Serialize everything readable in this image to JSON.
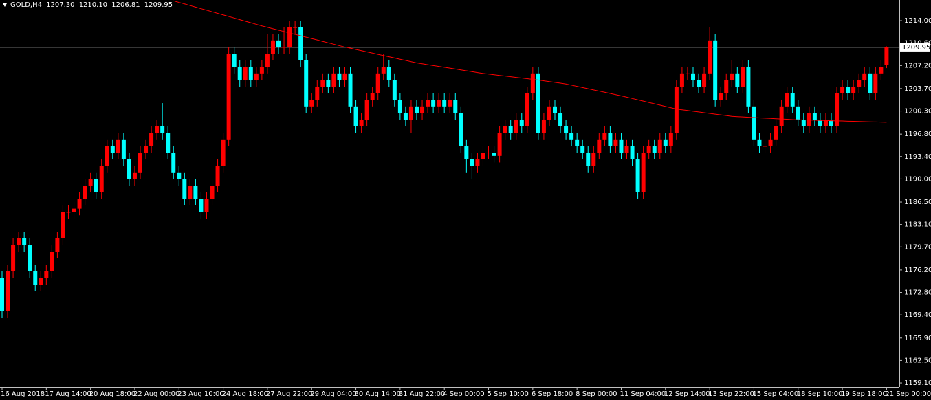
{
  "chart_data": {
    "type": "candlestick",
    "title": "GOLD,H4",
    "title_values": [
      "1207.30",
      "1210.10",
      "1206.81",
      "1209.95"
    ],
    "categories": [
      "16 Aug 2018",
      null,
      null,
      null,
      null,
      null,
      null,
      null,
      "17 Aug 14:00",
      null,
      null,
      null,
      null,
      null,
      null,
      null,
      "20 Aug 18:00",
      null,
      null,
      null,
      null,
      null,
      null,
      null,
      "22 Aug 00:00",
      null,
      null,
      null,
      null,
      null,
      null,
      null,
      "23 Aug 10:00",
      null,
      null,
      null,
      null,
      null,
      null,
      null,
      "24 Aug 18:00",
      null,
      null,
      null,
      null,
      null,
      null,
      null,
      "27 Aug 22:00",
      null,
      null,
      null,
      null,
      null,
      null,
      null,
      "29 Aug 04:00",
      null,
      null,
      null,
      null,
      null,
      null,
      null,
      "30 Aug 14:00",
      null,
      null,
      null,
      null,
      null,
      null,
      null,
      "31 Aug 22:00",
      null,
      null,
      null,
      null,
      null,
      null,
      null,
      "4 Sep 00:00",
      null,
      null,
      null,
      null,
      null,
      null,
      null,
      "5 Sep 10:00",
      null,
      null,
      null,
      null,
      null,
      null,
      null,
      "6 Sep 18:00",
      null,
      null,
      null,
      null,
      null,
      null,
      null,
      "8 Sep 00:00",
      null,
      null,
      null,
      null,
      null,
      null,
      null,
      "11 Sep 04:00",
      null,
      null,
      null,
      null,
      null,
      null,
      null,
      "12 Sep 14:00",
      null,
      null,
      null,
      null,
      null,
      null,
      null,
      "13 Sep 22:00",
      null,
      null,
      null,
      null,
      null,
      null,
      null,
      "15 Sep 04:00",
      null,
      null,
      null,
      null,
      null,
      null,
      null,
      "18 Sep 10:00",
      null,
      null,
      null,
      null,
      null,
      null,
      null,
      "19 Sep 18:00",
      null,
      null,
      null,
      null,
      null,
      null,
      null,
      "21 Sep 00:00"
    ],
    "open": [
      1175,
      1170,
      1176,
      1180,
      1181,
      1180,
      1176,
      1174,
      1175,
      1176,
      1179,
      1181,
      1185,
      1185,
      1185.5,
      1187,
      1189,
      1190,
      1188,
      1192,
      1195,
      1194,
      1196,
      1193,
      1190,
      1191,
      1194,
      1195,
      1197,
      1198,
      1197,
      1194,
      1191,
      1190,
      1187,
      1189,
      1187,
      1185,
      1187,
      1189,
      1192,
      1196,
      1209,
      1207,
      1205,
      1207,
      1205,
      1206,
      1207,
      1209,
      1211,
      1210,
      1210,
      1213,
      1213,
      1208,
      1201,
      1202,
      1204,
      1205,
      1204,
      1206,
      1205,
      1206,
      1201,
      1198,
      1199,
      1202,
      1203,
      1206,
      1207,
      1205,
      1202,
      1200,
      1199,
      1201,
      1200,
      1201,
      1202,
      1201,
      1202,
      1201,
      1202,
      1200,
      1195,
      1193,
      1192,
      1193,
      1194,
      1194,
      1193.5,
      1197,
      1198,
      1197,
      1199,
      1198,
      1203,
      1206,
      1197,
      1199,
      1201,
      1200,
      1198,
      1197,
      1196,
      1195,
      1194,
      1192,
      1194,
      1196,
      1197,
      1195,
      1196,
      1194,
      1195,
      1193,
      1188,
      1194,
      1195,
      1194,
      1196,
      1195,
      1197,
      1204,
      1206,
      1206,
      1205,
      1204,
      1206,
      1211,
      1202,
      1203,
      1205,
      1206,
      1204,
      1207,
      1201,
      1196,
      1195,
      1195,
      1196,
      1198,
      1201,
      1203,
      1201,
      1199,
      1198,
      1200,
      1199,
      1198,
      1199,
      1198,
      1203,
      1204,
      1203,
      1204,
      1205,
      1206,
      1203,
      1206,
      1207.3
    ],
    "high": [
      1176,
      1177,
      1181,
      1182,
      1182,
      1181,
      1177,
      1176,
      1177,
      1180,
      1182,
      1186,
      1186,
      1186.5,
      1188,
      1190,
      1191,
      1191,
      1193,
      1196,
      1196,
      1197,
      1197,
      1194,
      1192,
      1195,
      1196,
      1198,
      1199,
      1201.5,
      1198,
      1195,
      1192,
      1191,
      1190,
      1190,
      1188,
      1188,
      1190,
      1193,
      1197,
      1210,
      1210,
      1208,
      1208,
      1208,
      1207,
      1208,
      1212,
      1212,
      1212,
      1213,
      1214,
      1214,
      1214,
      1209,
      1203,
      1205,
      1206,
      1206,
      1207,
      1207,
      1207,
      1207,
      1202,
      1200,
      1203,
      1204,
      1207,
      1209,
      1208,
      1206,
      1203,
      1201,
      1202,
      1202,
      1202,
      1203,
      1203,
      1203,
      1203,
      1203,
      1203,
      1201,
      1196,
      1194,
      1194,
      1195,
      1195,
      1195,
      1198,
      1199,
      1199,
      1200,
      1200,
      1204,
      1207,
      1207,
      1200,
      1202,
      1202,
      1201,
      1199,
      1198,
      1197,
      1196,
      1195,
      1195,
      1197,
      1198,
      1198,
      1197,
      1197,
      1196,
      1196,
      1194,
      1195,
      1196,
      1196,
      1197,
      1197,
      1198,
      1205,
      1207,
      1207,
      1207,
      1206,
      1207,
      1213,
      1212,
      1204,
      1206,
      1208,
      1207,
      1208,
      1208,
      1202,
      1197,
      1196,
      1197,
      1199,
      1202,
      1204,
      1204,
      1202,
      1200,
      1201,
      1201,
      1200,
      1200,
      1200,
      1204,
      1205,
      1205,
      1205,
      1206,
      1207,
      1207,
      1207,
      1208,
      1210.1
    ],
    "low": [
      1169,
      1169,
      1175,
      1179,
      1179,
      1175,
      1173,
      1173,
      1174,
      1175,
      1178,
      1180,
      1184,
      1184,
      1184.5,
      1186,
      1188,
      1187,
      1187,
      1191,
      1193,
      1193,
      1192,
      1189,
      1189,
      1190,
      1193,
      1194,
      1196,
      1196,
      1193,
      1190,
      1189,
      1186,
      1186,
      1186,
      1184,
      1184,
      1186,
      1188,
      1191,
      1195,
      1206,
      1204,
      1204,
      1204,
      1204,
      1205,
      1206,
      1208,
      1209,
      1209,
      1209,
      1212,
      1207,
      1200,
      1200,
      1201,
      1203,
      1203,
      1203,
      1204,
      1204,
      1200,
      1197,
      1197,
      1198,
      1201,
      1202,
      1205,
      1204,
      1201,
      1199,
      1198,
      1197,
      1199,
      1199,
      1200,
      1200,
      1200,
      1200,
      1200,
      1199,
      1194,
      1191,
      1190,
      1191,
      1192,
      1193,
      1192.5,
      1192.5,
      1196,
      1196,
      1196,
      1197,
      1197,
      1202,
      1196,
      1196,
      1198,
      1199,
      1197,
      1196,
      1195,
      1194,
      1193,
      1191,
      1191,
      1193,
      1195,
      1194,
      1194,
      1193,
      1193,
      1192,
      1187,
      1187,
      1193,
      1193,
      1193,
      1194,
      1194,
      1196,
      1203,
      1205,
      1204,
      1203,
      1203,
      1205,
      1201,
      1201,
      1202,
      1204,
      1203,
      1203,
      1200,
      1195,
      1194,
      1194,
      1194,
      1195,
      1197,
      1200,
      1200,
      1198,
      1197,
      1197,
      1198,
      1197,
      1197,
      1197,
      1197,
      1202,
      1202,
      1202,
      1203,
      1204,
      1202,
      1202,
      1205,
      1206.81
    ],
    "close": [
      1170,
      1176,
      1180,
      1181,
      1180,
      1176,
      1174,
      1175,
      1176,
      1179,
      1181,
      1185,
      1185,
      1185.5,
      1187,
      1189,
      1190,
      1188,
      1192,
      1195,
      1194,
      1196,
      1193,
      1190,
      1191,
      1194,
      1195,
      1197,
      1198,
      1197,
      1194,
      1191,
      1190,
      1187,
      1189,
      1187,
      1185,
      1187,
      1189,
      1192,
      1196,
      1209,
      1207,
      1205,
      1207,
      1205,
      1206,
      1207,
      1209,
      1211,
      1210,
      1210,
      1213,
      1213,
      1208,
      1201,
      1202,
      1204,
      1205,
      1204,
      1206,
      1205,
      1206,
      1201,
      1198,
      1199,
      1202,
      1203,
      1206,
      1207,
      1205,
      1202,
      1200,
      1199,
      1201,
      1200,
      1201,
      1202,
      1201,
      1202,
      1201,
      1202,
      1200,
      1195,
      1193,
      1192,
      1193,
      1194,
      1194,
      1193.5,
      1197,
      1198,
      1197,
      1199,
      1198,
      1203,
      1206,
      1197,
      1199,
      1201,
      1200,
      1198,
      1197,
      1196,
      1195,
      1194,
      1192,
      1194,
      1196,
      1197,
      1195,
      1196,
      1194,
      1195,
      1193,
      1188,
      1194,
      1195,
      1194,
      1196,
      1195,
      1197,
      1204,
      1206,
      1206,
      1205,
      1204,
      1206,
      1211,
      1202,
      1203,
      1205,
      1206,
      1204,
      1207,
      1201,
      1196,
      1195,
      1195,
      1196,
      1198,
      1201,
      1203,
      1201,
      1199,
      1198,
      1200,
      1199,
      1198,
      1199,
      1198,
      1203,
      1204,
      1203,
      1204,
      1205,
      1206,
      1203,
      1206,
      1207,
      1209.95
    ],
    "up_color": "#ff0000",
    "down_color": "#00ffff",
    "ma": {
      "color": "#ff0000",
      "values": [
        null,
        null,
        null,
        null,
        null,
        null,
        null,
        null,
        null,
        null,
        null,
        null,
        null,
        null,
        null,
        null,
        null,
        null,
        null,
        null,
        null,
        null,
        null,
        null,
        null,
        null,
        null,
        null,
        null,
        null,
        null,
        1217.0,
        1216.76,
        1216.53,
        1216.29,
        1216.05,
        1215.81,
        1215.58,
        1215.34,
        1215.1,
        1214.86,
        1214.63,
        1214.39,
        1214.15,
        1213.91,
        1213.68,
        1213.44,
        1213.2,
        1212.99,
        1212.77,
        1212.56,
        1212.35,
        1212.13,
        1211.92,
        1211.71,
        1211.49,
        1211.28,
        1211.07,
        1210.85,
        1210.64,
        1210.43,
        1210.21,
        1210.0,
        1209.82,
        1209.63,
        1209.45,
        1209.26,
        1209.08,
        1208.89,
        1208.71,
        1208.52,
        1208.34,
        1208.15,
        1207.97,
        1207.78,
        1207.6,
        1207.47,
        1207.33,
        1207.2,
        1207.07,
        1206.93,
        1206.8,
        1206.67,
        1206.53,
        1206.4,
        1206.27,
        1206.13,
        1206.0,
        1205.9,
        1205.8,
        1205.7,
        1205.6,
        1205.5,
        1205.4,
        1205.3,
        1205.2,
        1205.1,
        1205.0,
        1204.88,
        1204.76,
        1204.64,
        1204.52,
        1204.4,
        1204.22,
        1204.04,
        1203.86,
        1203.68,
        1203.5,
        1203.32,
        1203.14,
        1202.96,
        1202.78,
        1202.6,
        1202.4,
        1202.2,
        1202.0,
        1201.8,
        1201.6,
        1201.4,
        1201.2,
        1201.0,
        1200.8,
        1200.6,
        1200.49,
        1200.38,
        1200.27,
        1200.16,
        1200.05,
        1199.94,
        1199.83,
        1199.72,
        1199.61,
        1199.5,
        1199.45,
        1199.41,
        1199.36,
        1199.32,
        1199.27,
        1199.23,
        1199.18,
        1199.14,
        1199.09,
        1199.05,
        1199.0,
        1198.98,
        1198.95,
        1198.93,
        1198.91,
        1198.88,
        1198.86,
        1198.84,
        1198.81,
        1198.79,
        1198.76,
        1198.74,
        1198.72,
        1198.69,
        1198.67,
        1198.65,
        1198.62,
        1198.6
      ]
    },
    "last_price": {
      "value": 1209.95,
      "label": "1209.95"
    },
    "ylim": [
      1158.48,
      1217.13
    ],
    "yticks": [
      {
        "value": 1214,
        "label": "1214.00"
      },
      {
        "value": 1210.6,
        "label": "1210.60"
      },
      {
        "value": 1207.2,
        "label": "1207.20"
      },
      {
        "value": 1203.7,
        "label": "1203.70"
      },
      {
        "value": 1200.3,
        "label": "1200.30"
      },
      {
        "value": 1196.8,
        "label": "1196.80"
      },
      {
        "value": 1193.4,
        "label": "1193.40"
      },
      {
        "value": 1190,
        "label": "1190.00"
      },
      {
        "value": 1186.5,
        "label": "1186.50"
      },
      {
        "value": 1183.1,
        "label": "1183.10"
      },
      {
        "value": 1179.7,
        "label": "1179.70"
      },
      {
        "value": 1176.2,
        "label": "1176.20"
      },
      {
        "value": 1172.8,
        "label": "1172.80"
      },
      {
        "value": 1169.4,
        "label": "1169.40"
      },
      {
        "value": 1165.9,
        "label": "1165.90"
      },
      {
        "value": 1162.5,
        "label": "1162.50"
      },
      {
        "value": 1159.1,
        "label": "1159.10"
      }
    ]
  }
}
